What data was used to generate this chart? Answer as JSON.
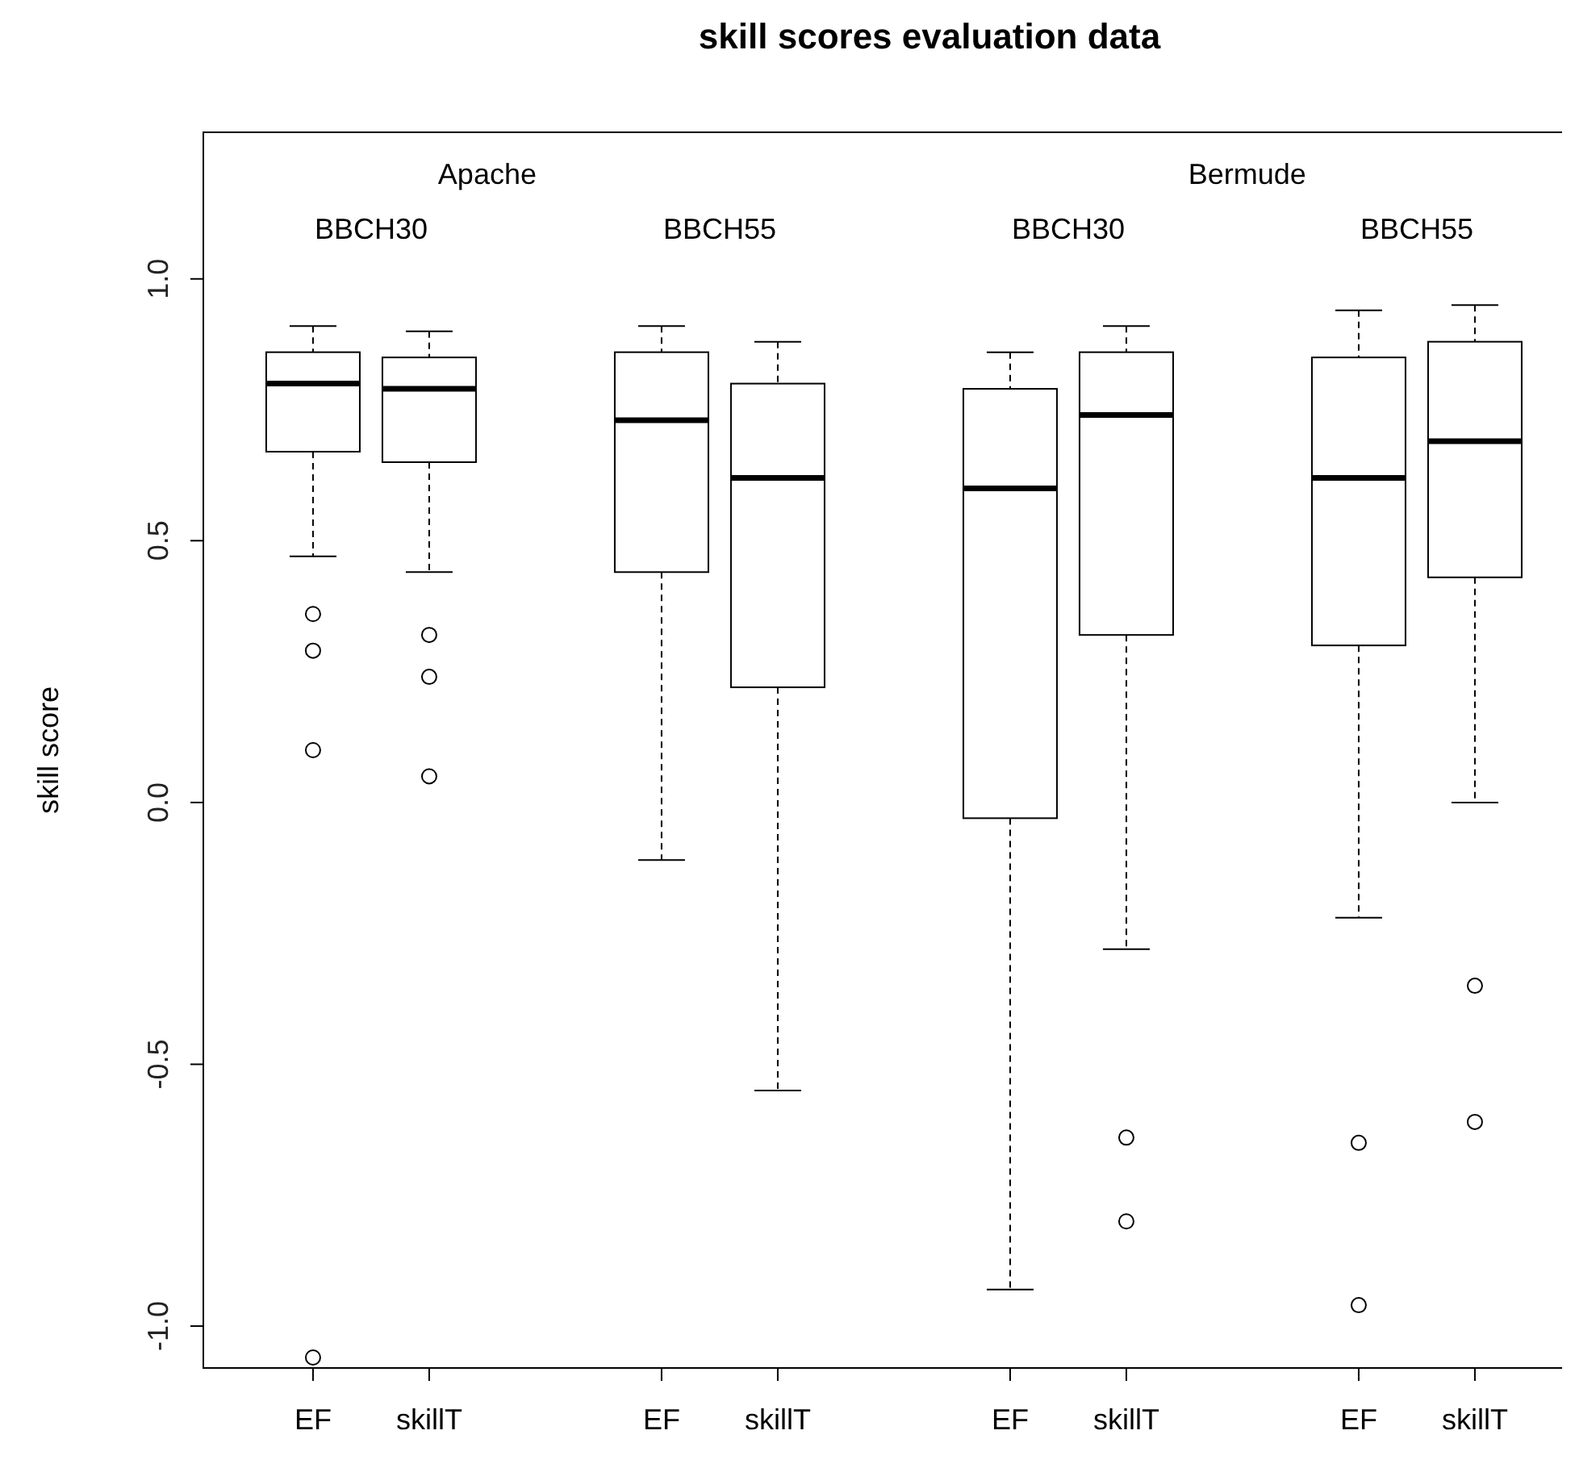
{
  "chart_data": {
    "type": "box",
    "title": "skill scores evaluation data",
    "ylabel": "skill score",
    "categories": [
      "EF",
      "skillT",
      "EF",
      "skillT",
      "EF",
      "skillT",
      "EF",
      "skillT"
    ],
    "boxes": [
      {
        "low": 0.47,
        "q1": 0.67,
        "median": 0.8,
        "q3": 0.86,
        "high": 0.91,
        "outliers": [
          0.36,
          0.29,
          0.1,
          -1.06
        ]
      },
      {
        "low": 0.44,
        "q1": 0.65,
        "median": 0.79,
        "q3": 0.85,
        "high": 0.9,
        "outliers": [
          0.32,
          0.24,
          0.05
        ]
      },
      {
        "low": -0.11,
        "q1": 0.44,
        "median": 0.73,
        "q3": 0.86,
        "high": 0.91
      },
      {
        "low": -0.55,
        "q1": 0.22,
        "median": 0.62,
        "q3": 0.8,
        "high": 0.88
      },
      {
        "low": -0.93,
        "q1": -0.03,
        "median": 0.6,
        "q3": 0.79,
        "high": 0.86
      },
      {
        "low": -0.28,
        "q1": 0.32,
        "median": 0.74,
        "q3": 0.86,
        "high": 0.91,
        "outliers": [
          -0.64,
          -0.8
        ]
      },
      {
        "low": -0.22,
        "q1": 0.3,
        "median": 0.62,
        "q3": 0.85,
        "high": 0.94,
        "outliers": [
          -0.65,
          -0.96
        ]
      },
      {
        "low": 0.0,
        "q1": 0.43,
        "median": 0.69,
        "q3": 0.88,
        "high": 0.95,
        "outliers": [
          -0.35,
          -0.61
        ]
      }
    ],
    "color": "#000000",
    "ylim": [
      -1.08,
      1.28
    ],
    "yticks": [
      {
        "value": -1,
        "label": "-1.0"
      },
      {
        "value": -0.5,
        "label": "-0.5"
      },
      {
        "value": 0,
        "label": "0.0"
      },
      {
        "value": 0.5,
        "label": "0.5"
      },
      {
        "value": 1,
        "label": "1.0"
      }
    ],
    "annotations": [
      "Apache",
      "Bermude",
      "BBCH30",
      "BBCH55",
      "BBCH30",
      "BBCH55"
    ]
  }
}
